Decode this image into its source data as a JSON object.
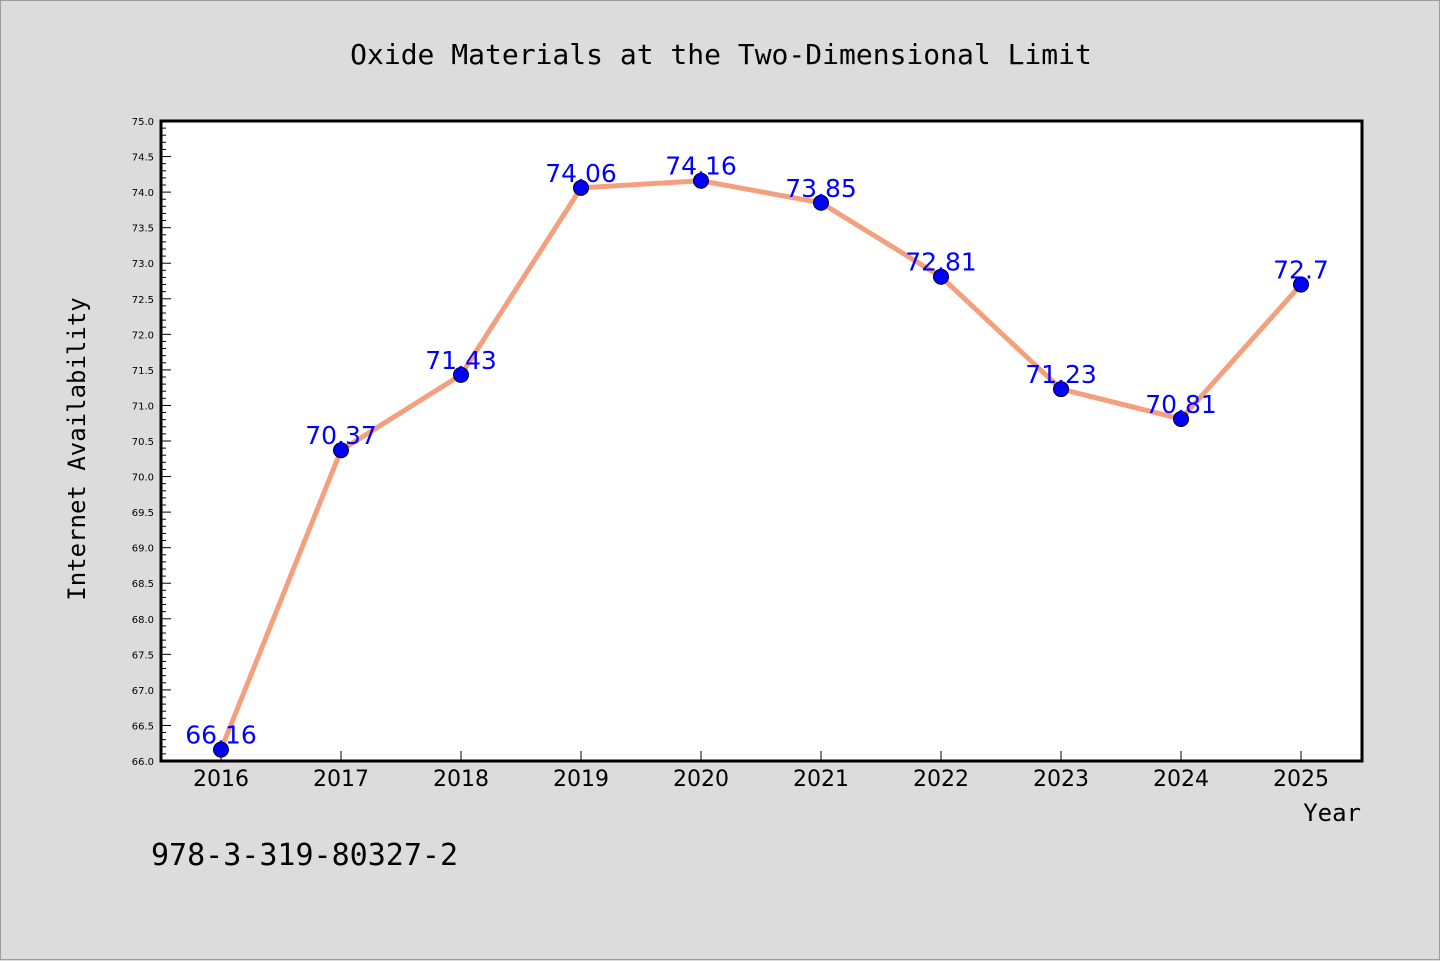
{
  "chart_data": {
    "type": "line",
    "title": "Oxide Materials at the Two-Dimensional Limit",
    "xlabel": "Year",
    "ylabel": "Internet Availability",
    "categories": [
      "2016",
      "2017",
      "2018",
      "2019",
      "2020",
      "2021",
      "2022",
      "2023",
      "2024",
      "2025"
    ],
    "values": [
      66.16,
      70.37,
      71.43,
      74.06,
      74.16,
      73.85,
      72.81,
      71.23,
      70.81,
      72.7
    ],
    "data_labels": [
      "66.16",
      "70.37",
      "71.43",
      "74.06",
      "74.16",
      "73.85",
      "72.81",
      "71.23",
      "70.81",
      "72.7"
    ],
    "ylim": [
      66.0,
      75.0
    ],
    "yticks": [
      "66.0",
      "66.5",
      "67.0",
      "67.5",
      "68.0",
      "68.5",
      "69.0",
      "69.5",
      "70.0",
      "70.5",
      "71.0",
      "71.5",
      "72.0",
      "72.5",
      "73.0",
      "73.5",
      "74.0",
      "74.5",
      "75.0"
    ],
    "grid": false,
    "line_color": "#f4a07e",
    "marker_color": "#0000ff",
    "label_color": "#0000ff"
  },
  "footer_text": "978-3-319-80327-2"
}
